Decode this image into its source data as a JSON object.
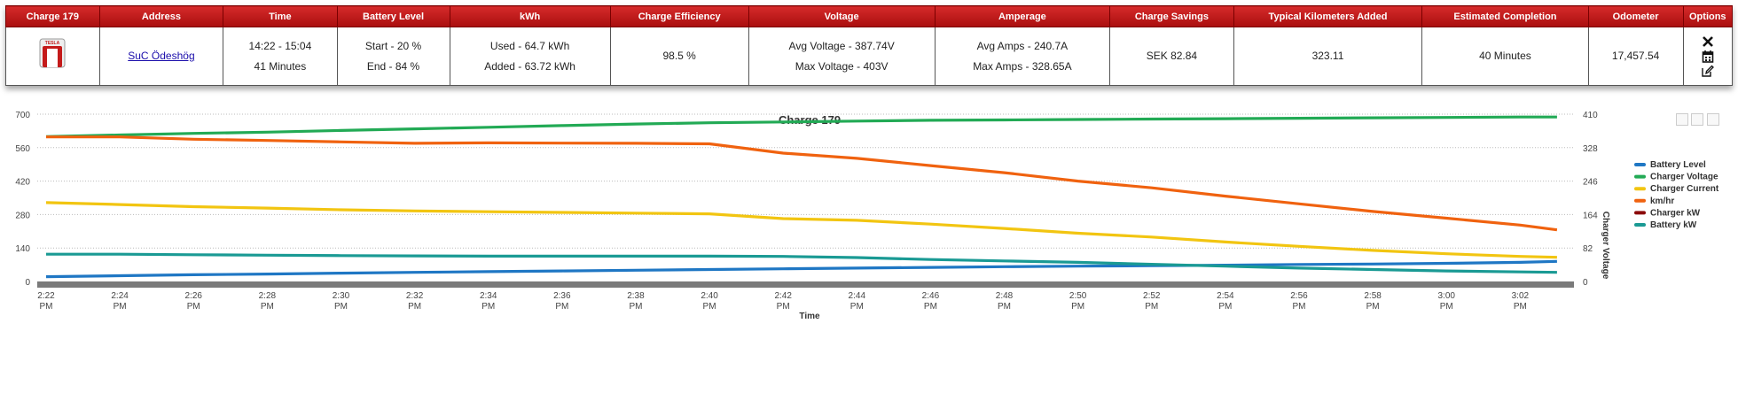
{
  "table": {
    "headers": [
      "Charge 179",
      "Address",
      "Time",
      "Battery Level",
      "kWh",
      "Charge Efficiency",
      "Voltage",
      "Amperage",
      "Charge Savings",
      "Typical Kilometers Added",
      "Estimated Completion",
      "Odometer",
      "Options"
    ],
    "row": {
      "logo_text": "TESLA",
      "address": "SuC Ödeshög",
      "time_range": "14:22 - 15:04",
      "duration": "41 Minutes",
      "battery_start": "Start - 20 %",
      "battery_end": "End - 84 %",
      "kwh_used": "Used - 64.7 kWh",
      "kwh_added": "Added - 63.72 kWh",
      "efficiency": "98.5 %",
      "avg_voltage": "Avg Voltage - 387.74V",
      "max_voltage": "Max Voltage - 403V",
      "avg_amps": "Avg Amps - 240.7A",
      "max_amps": "Max Amps - 328.65A",
      "savings": "SEK 82.84",
      "km_added": "323.11",
      "completion": "40 Minutes",
      "odometer": "17,457.54"
    },
    "options_icons": [
      "close-icon",
      "calendar-icon",
      "edit-icon"
    ],
    "header_color": "#c41a1a"
  },
  "chart_data": {
    "type": "line",
    "title": "Charge 179",
    "xlabel": "Time",
    "ylabel_right": "Charger Voltage",
    "x_ticks": [
      "2:22 PM",
      "2:24 PM",
      "2:26 PM",
      "2:28 PM",
      "2:30 PM",
      "2:32 PM",
      "2:34 PM",
      "2:36 PM",
      "2:38 PM",
      "2:40 PM",
      "2:42 PM",
      "2:44 PM",
      "2:46 PM",
      "2:48 PM",
      "2:50 PM",
      "2:52 PM",
      "2:54 PM",
      "2:56 PM",
      "2:58 PM",
      "3:00 PM",
      "3:02 PM"
    ],
    "y_left_ticks": [
      0,
      140,
      280,
      420,
      560,
      700
    ],
    "y_right_ticks": [
      0,
      82,
      164,
      246,
      328,
      410
    ],
    "ylim_left": [
      0,
      700
    ],
    "ylim_right": [
      0,
      410
    ],
    "x_minutes": [
      0,
      2,
      4,
      6,
      8,
      10,
      12,
      14,
      16,
      18,
      20,
      22,
      24,
      26,
      28,
      30,
      32,
      34,
      36,
      38,
      40,
      41
    ],
    "series": [
      {
        "name": "Battery Level",
        "axis": "left",
        "color": "#1f77c4",
        "values": [
          20,
          24,
          28,
          31,
          35,
          38,
          41,
          44,
          47,
          50,
          53,
          56,
          59,
          62,
          64,
          66,
          68,
          71,
          73,
          76,
          80,
          84
        ]
      },
      {
        "name": "Charger Voltage",
        "axis": "right",
        "color": "#22aa55",
        "values": [
          355,
          359,
          363,
          366,
          370,
          374,
          378,
          382,
          386,
          389,
          391,
          393,
          395,
          396,
          397,
          398,
          399,
          400,
          401,
          402,
          403,
          403
        ]
      },
      {
        "name": "Charger Current",
        "axis": "left",
        "color": "#f2c511",
        "values": [
          330,
          322,
          313,
          307,
          300,
          295,
          292,
          289,
          286,
          283,
          263,
          256,
          240,
          222,
          202,
          186,
          165,
          147,
          130,
          116,
          105,
          101
        ]
      },
      {
        "name": "km/hr",
        "axis": "left",
        "color": "#f0620f",
        "values": [
          605,
          605,
          595,
          590,
          584,
          578,
          580,
          579,
          578,
          576,
          537,
          515,
          485,
          455,
          420,
          392,
          357,
          325,
          293,
          265,
          236,
          216
        ]
      },
      {
        "name": "Charger kW",
        "axis": "left",
        "color": "#8b0a0a",
        "values": []
      },
      {
        "name": "Battery kW",
        "axis": "left",
        "color": "#1a9a94",
        "values": [
          114,
          114,
          112,
          110,
          108,
          107,
          106,
          106,
          106,
          106,
          105,
          100,
          92,
          86,
          80,
          72,
          64,
          56,
          50,
          44,
          40,
          38
        ]
      }
    ],
    "grid": true,
    "legend_position": "right"
  }
}
